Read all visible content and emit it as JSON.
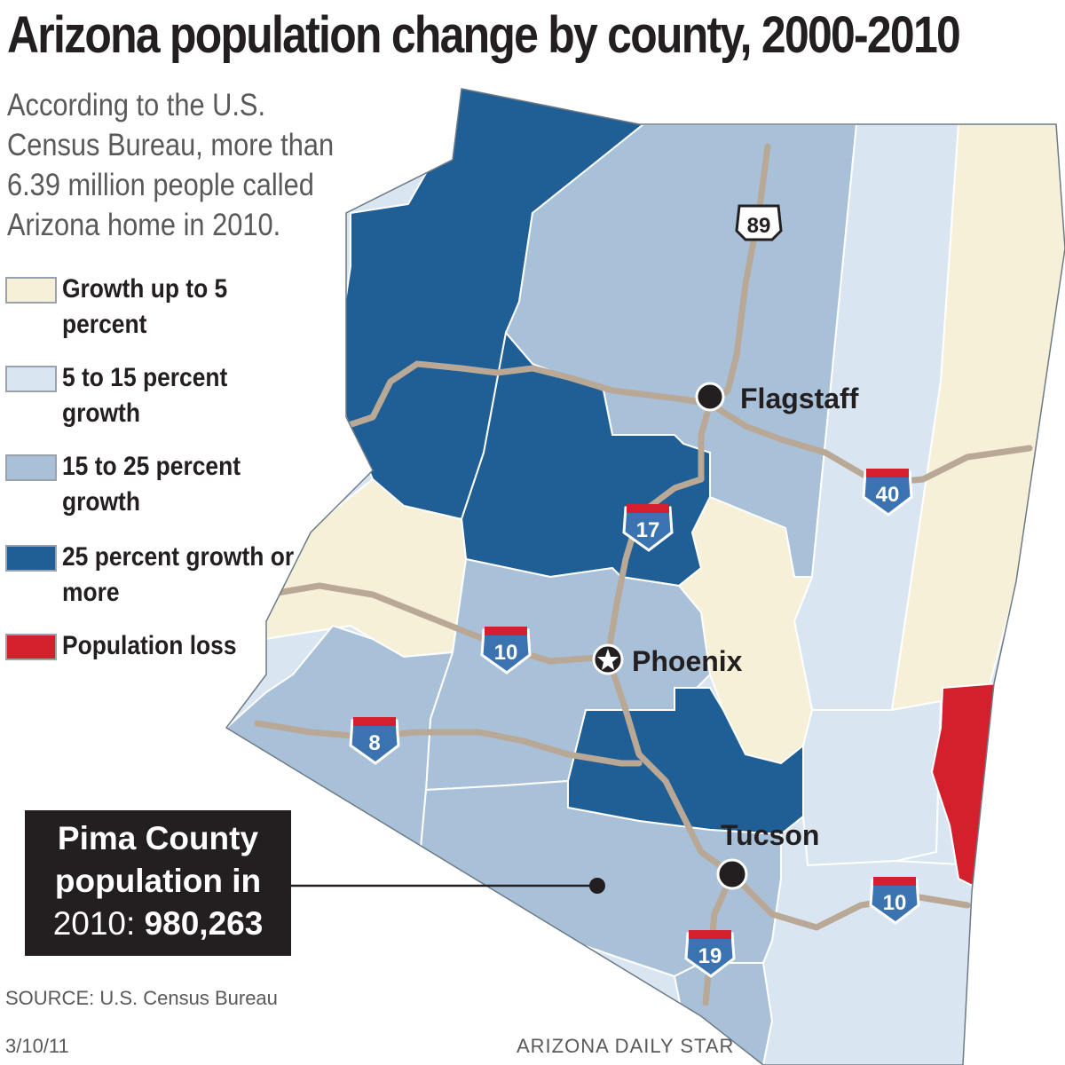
{
  "title": "Arizona population change by county, 2000-2010",
  "intro": "According to the U.S. Census Bureau, more than 6.39 million people called Arizona home in 2010.",
  "legend": [
    {
      "label": "Growth up to 5 percent",
      "color": "#f5f0d7"
    },
    {
      "label": "5 to 15 percent growth",
      "color": "#d9e6f1"
    },
    {
      "label": "15 to 25 percent growth",
      "color": "#a8c1d8"
    },
    {
      "label": "25 percent growth or more",
      "color": "#1f5f96"
    },
    {
      "label": "Population loss",
      "color": "#d3202c"
    }
  ],
  "cities": {
    "flagstaff": "Flagstaff",
    "phoenix": "Phoenix",
    "tucson": "Tucson"
  },
  "highways": {
    "us89": "89",
    "i17": "17",
    "i40": "40",
    "i10_west": "10",
    "i8": "8",
    "i10_east": "10",
    "i19": "19"
  },
  "callout": {
    "line1": "Pima County",
    "line2": "population in",
    "prefix": "2010: ",
    "value": "980,263"
  },
  "source": "SOURCE: U.S. Census Bureau",
  "date": "3/10/11",
  "credit": "ARIZONA DAILY STAR",
  "colors": {
    "road": "#b8a895",
    "county_border": "#ffffff",
    "state_outline": "#6d7a86",
    "dark_box": "#231f20"
  }
}
